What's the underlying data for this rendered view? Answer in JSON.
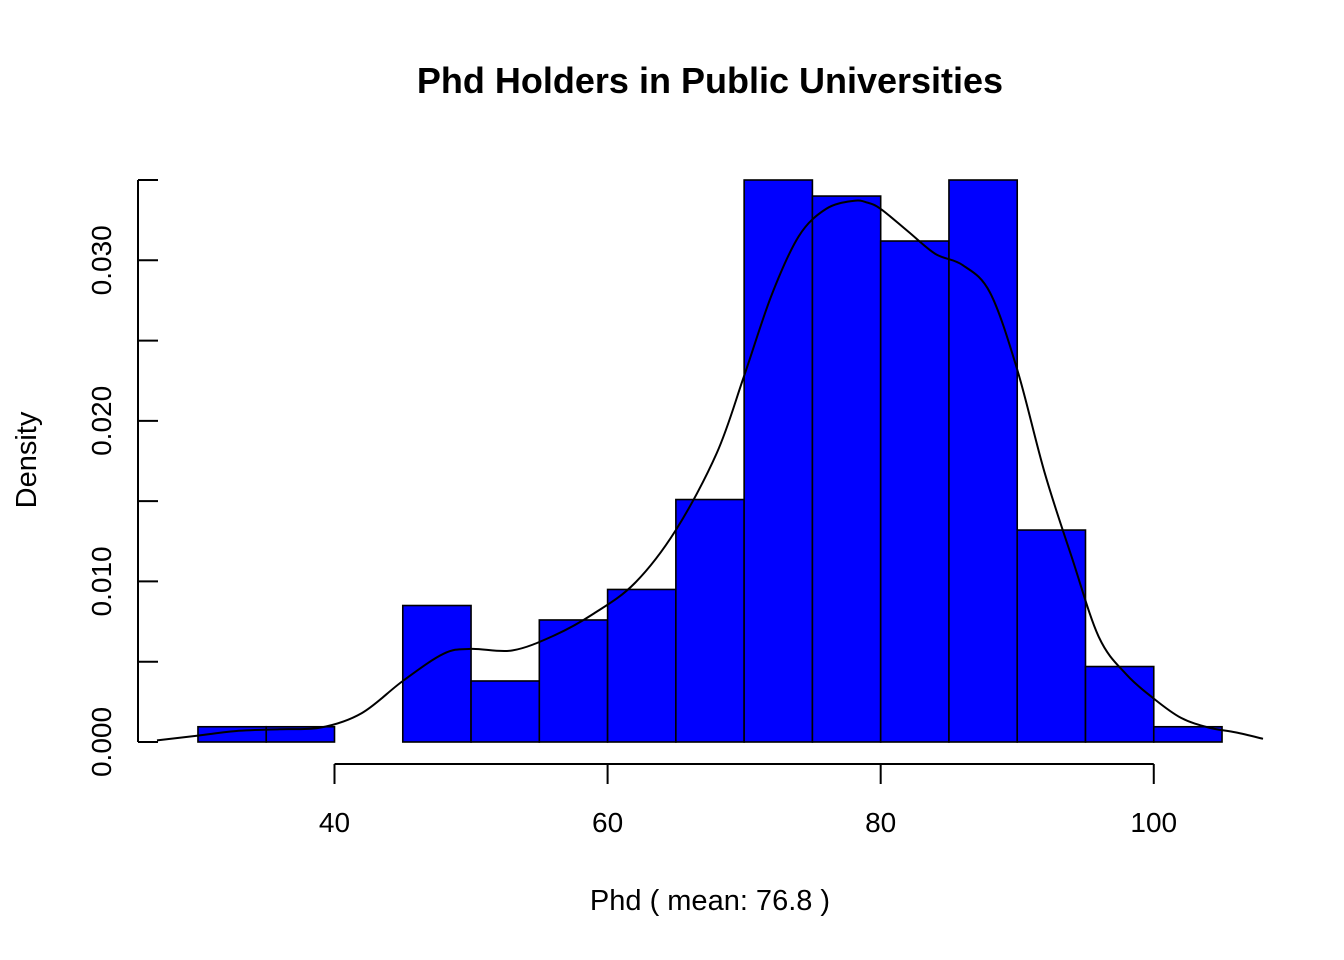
{
  "chart_data": {
    "type": "bar",
    "subtype": "histogram-with-density",
    "title": "Phd Holders in Public Universities",
    "xlabel": "Phd ( mean:  76.8 )",
    "ylabel": "Density",
    "bar_color": "#0000ff",
    "line_color": "#000000",
    "xlim": [
      27,
      108
    ],
    "ylim": [
      0,
      0.035
    ],
    "x_ticks": [
      40,
      60,
      80,
      100
    ],
    "x_tick_labels": [
      "40",
      "60",
      "80",
      "100"
    ],
    "y_ticks": [
      0,
      0.005,
      0.01,
      0.015,
      0.02,
      0.025,
      0.03,
      0.035
    ],
    "y_tick_labels": [
      "0.000",
      "",
      "0.010",
      "",
      "0.020",
      "",
      "0.030",
      ""
    ],
    "bins": [
      {
        "start": 30,
        "end": 35,
        "density": 0.00095
      },
      {
        "start": 35,
        "end": 40,
        "density": 0.00095
      },
      {
        "start": 40,
        "end": 45,
        "density": 0
      },
      {
        "start": 45,
        "end": 50,
        "density": 0.0085
      },
      {
        "start": 50,
        "end": 55,
        "density": 0.0038
      },
      {
        "start": 55,
        "end": 60,
        "density": 0.0076
      },
      {
        "start": 60,
        "end": 65,
        "density": 0.0095
      },
      {
        "start": 65,
        "end": 70,
        "density": 0.0151
      },
      {
        "start": 70,
        "end": 75,
        "density": 0.035
      },
      {
        "start": 75,
        "end": 80,
        "density": 0.034
      },
      {
        "start": 80,
        "end": 85,
        "density": 0.0312
      },
      {
        "start": 85,
        "end": 90,
        "density": 0.035
      },
      {
        "start": 90,
        "end": 95,
        "density": 0.0132
      },
      {
        "start": 95,
        "end": 100,
        "density": 0.0047
      },
      {
        "start": 100,
        "end": 105,
        "density": 0.00095
      }
    ],
    "density_curve": {
      "x": [
        27,
        30,
        33,
        36,
        39,
        42,
        45,
        48,
        50,
        53,
        56,
        59,
        62,
        65,
        68,
        70,
        72,
        74,
        76,
        78,
        79,
        80,
        82,
        84,
        86,
        88,
        90,
        92,
        94,
        96,
        98,
        100,
        102,
        104,
        106,
        108
      ],
      "y": [
        0.0001,
        0.0004,
        0.0007,
        0.0008,
        0.0009,
        0.0018,
        0.0038,
        0.0055,
        0.0058,
        0.0057,
        0.0066,
        0.008,
        0.0099,
        0.0132,
        0.018,
        0.0228,
        0.0278,
        0.0315,
        0.0332,
        0.0337,
        0.0336,
        0.0332,
        0.0318,
        0.0304,
        0.0297,
        0.028,
        0.0232,
        0.0168,
        0.0115,
        0.0065,
        0.0042,
        0.0027,
        0.0015,
        0.0009,
        0.0006,
        0.0002
      ]
    }
  }
}
